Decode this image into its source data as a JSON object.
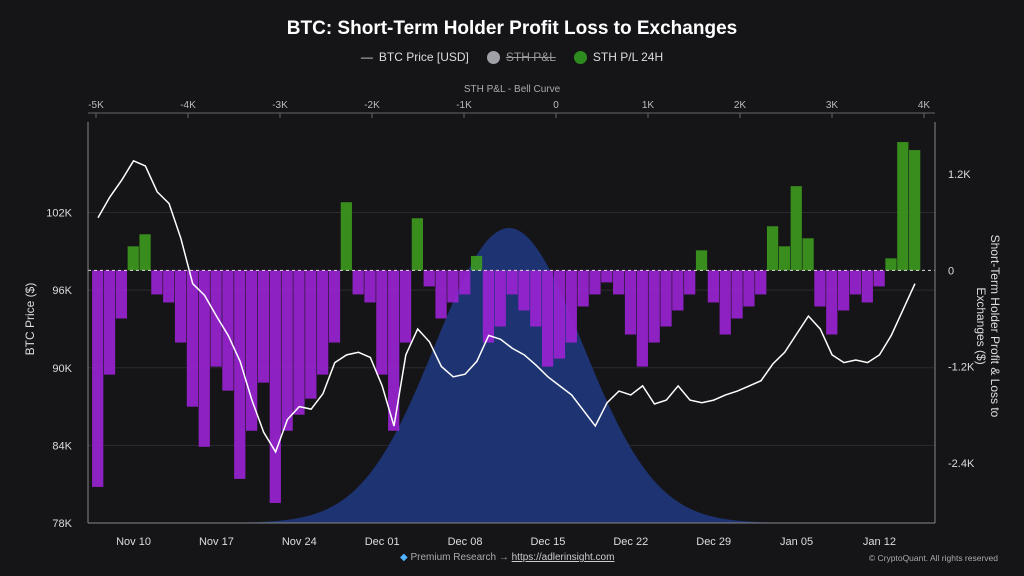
{
  "title": "BTC: Short-Term Holder Profit Loss to Exchanges",
  "legend": [
    {
      "label": "BTC Price [USD]",
      "marker": "line",
      "color": "#ffffff",
      "disabled": false
    },
    {
      "label": "STH P&L",
      "marker": "dot",
      "color": "#a0a0a8",
      "disabled": true
    },
    {
      "label": "STH P/L 24H",
      "marker": "dot",
      "color": "#2e8b1f",
      "disabled": false
    }
  ],
  "footer": {
    "left_prefix": "Premium Research →",
    "link": "https://adlerinsight.com",
    "right": "© CryptoQuant. All rights reserved"
  },
  "chart_data": {
    "type": "bar+line+area",
    "title": "BTC: Short-Term Holder Profit Loss to Exchanges",
    "top_axis": {
      "label": "STH P&L - Bell Curve",
      "ticks": [
        "-5K",
        "-4K",
        "-3K",
        "-2K",
        "-1K",
        "0",
        "1K",
        "2K",
        "3K",
        "4K"
      ],
      "range": [
        -5100,
        4050
      ]
    },
    "left_axis": {
      "label": "BTC Price ($)",
      "ticks": [
        "102K",
        "96K",
        "90K",
        "84K",
        "78K"
      ],
      "range": [
        78000,
        109000
      ]
    },
    "right_axis": {
      "label": "Short-Term Holder Profit & Loss to Exchanges ($)",
      "ticks": [
        "1.2K",
        "0",
        "-1.2K",
        "-2.4K"
      ],
      "range": [
        -3150,
        1850
      ]
    },
    "x_ticks": [
      "Nov 10",
      "Nov 17",
      "Nov 24",
      "Dec 01",
      "Dec 08",
      "Dec 15",
      "Dec 22",
      "Dec 29",
      "Jan 05",
      "Jan 12"
    ],
    "grid": true,
    "zero_line": "dashed",
    "legend_position": "top",
    "colors": {
      "positive": "#3c9a1e",
      "negative": "#9b22d4",
      "bell": "#1f3577",
      "price": "#ffffff"
    },
    "bell_curve": {
      "series": "STH P&L",
      "mean": -500,
      "sd": 800
    },
    "dates": [
      "Nov 07",
      "Nov 08",
      "Nov 09",
      "Nov 10",
      "Nov 11",
      "Nov 12",
      "Nov 13",
      "Nov 14",
      "Nov 15",
      "Nov 16",
      "Nov 17",
      "Nov 18",
      "Nov 19",
      "Nov 20",
      "Nov 21",
      "Nov 22",
      "Nov 23",
      "Nov 24",
      "Nov 25",
      "Nov 26",
      "Nov 27",
      "Nov 28",
      "Nov 29",
      "Nov 30",
      "Dec 01",
      "Dec 02",
      "Dec 03",
      "Dec 04",
      "Dec 05",
      "Dec 06",
      "Dec 07",
      "Dec 08",
      "Dec 09",
      "Dec 10",
      "Dec 11",
      "Dec 12",
      "Dec 13",
      "Dec 14",
      "Dec 15",
      "Dec 16",
      "Dec 17",
      "Dec 18",
      "Dec 19",
      "Dec 20",
      "Dec 21",
      "Dec 22",
      "Dec 23",
      "Dec 24",
      "Dec 25",
      "Dec 26",
      "Dec 27",
      "Dec 28",
      "Dec 29",
      "Dec 30",
      "Dec 31",
      "Jan 01",
      "Jan 02",
      "Jan 03",
      "Jan 04",
      "Jan 05",
      "Jan 06",
      "Jan 07",
      "Jan 08",
      "Jan 09",
      "Jan 10",
      "Jan 11",
      "Jan 12",
      "Jan 13",
      "Jan 14",
      "Jan 15"
    ],
    "series": [
      {
        "name": "BTC Price [USD]",
        "type": "line",
        "axis": "left",
        "values": [
          101600,
          103200,
          104500,
          106000,
          105600,
          103600,
          102700,
          100000,
          96500,
          95600,
          94000,
          92500,
          90500,
          87500,
          85000,
          83500,
          86000,
          87000,
          86800,
          88000,
          90400,
          91000,
          91200,
          90800,
          88600,
          85500,
          91000,
          93000,
          92000,
          90100,
          89300,
          89500,
          90500,
          92500,
          92200,
          91500,
          91000,
          90200,
          89300,
          88600,
          87900,
          86700,
          85500,
          87300,
          88200,
          87900,
          88600,
          87200,
          87500,
          88600,
          87500,
          87300,
          87500,
          87900,
          88200,
          88600,
          89000,
          90300,
          91200,
          92600,
          94000,
          93000,
          91000,
          90400,
          90600,
          90400,
          91000,
          92500,
          94500,
          96500
        ]
      },
      {
        "name": "STH P/L 24H",
        "type": "bar",
        "axis": "right",
        "values": [
          -2700,
          -1300,
          -600,
          300,
          450,
          -300,
          -400,
          -900,
          -1700,
          -2200,
          -1200,
          -1500,
          -2600,
          -2000,
          -1400,
          -2900,
          -2000,
          -1800,
          -1600,
          -1300,
          -900,
          850,
          -300,
          -400,
          -1300,
          -2000,
          -900,
          650,
          -200,
          -600,
          -400,
          -300,
          180,
          -900,
          -700,
          -300,
          -500,
          -700,
          -1200,
          -1100,
          -900,
          -450,
          -300,
          -150,
          -300,
          -800,
          -1200,
          -900,
          -700,
          -500,
          -300,
          250,
          -400,
          -800,
          -600,
          -450,
          -300,
          550,
          300,
          1050,
          400,
          -450,
          -800,
          -500,
          -300,
          -400,
          -200,
          150,
          1600,
          1500
        ]
      }
    ]
  }
}
